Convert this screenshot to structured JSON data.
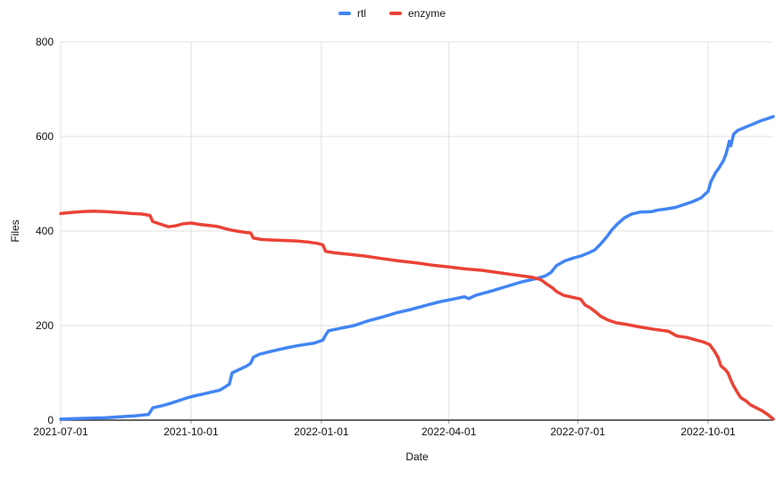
{
  "chart_data": {
    "type": "line",
    "title": "",
    "xlabel": "Date",
    "ylabel": "Files",
    "x_type": "date",
    "x_domain": [
      "2021-07-01",
      "2022-11-16"
    ],
    "ylim": [
      0,
      800
    ],
    "y_ticks": [
      0,
      200,
      400,
      600,
      800
    ],
    "x_ticks": [
      "2021-07-01",
      "2021-10-01",
      "2022-01-01",
      "2022-04-01",
      "2022-07-01",
      "2022-10-01"
    ],
    "grid": true,
    "legend_position": "top-center",
    "grid_color": "#e0e0e0",
    "axis_color": "#333333",
    "series": [
      {
        "name": "rtl",
        "color": "#4285F4",
        "points": [
          [
            "2021-07-01",
            2
          ],
          [
            "2021-07-10",
            3
          ],
          [
            "2021-07-20",
            4
          ],
          [
            "2021-08-01",
            5
          ],
          [
            "2021-08-12",
            7
          ],
          [
            "2021-08-22",
            9
          ],
          [
            "2021-09-01",
            12
          ],
          [
            "2021-09-04",
            26
          ],
          [
            "2021-09-10",
            30
          ],
          [
            "2021-09-16",
            35
          ],
          [
            "2021-09-22",
            41
          ],
          [
            "2021-09-28",
            47
          ],
          [
            "2021-10-03",
            51
          ],
          [
            "2021-10-09",
            55
          ],
          [
            "2021-10-15",
            59
          ],
          [
            "2021-10-21",
            63
          ],
          [
            "2021-10-25",
            70
          ],
          [
            "2021-10-28",
            76
          ],
          [
            "2021-10-30",
            100
          ],
          [
            "2021-11-04",
            107
          ],
          [
            "2021-11-09",
            114
          ],
          [
            "2021-11-12",
            120
          ],
          [
            "2021-11-14",
            133
          ],
          [
            "2021-11-18",
            139
          ],
          [
            "2021-11-26",
            145
          ],
          [
            "2021-12-06",
            152
          ],
          [
            "2021-12-16",
            158
          ],
          [
            "2021-12-27",
            163
          ],
          [
            "2022-01-02",
            169
          ],
          [
            "2022-01-04",
            180
          ],
          [
            "2022-01-06",
            189
          ],
          [
            "2022-01-14",
            194
          ],
          [
            "2022-01-24",
            200
          ],
          [
            "2022-02-03",
            210
          ],
          [
            "2022-02-13",
            218
          ],
          [
            "2022-02-23",
            227
          ],
          [
            "2022-03-05",
            234
          ],
          [
            "2022-03-15",
            242
          ],
          [
            "2022-03-25",
            250
          ],
          [
            "2022-04-04",
            256
          ],
          [
            "2022-04-12",
            261
          ],
          [
            "2022-04-15",
            257
          ],
          [
            "2022-04-20",
            264
          ],
          [
            "2022-05-02",
            274
          ],
          [
            "2022-05-12",
            283
          ],
          [
            "2022-05-22",
            292
          ],
          [
            "2022-06-01",
            299
          ],
          [
            "2022-06-08",
            305
          ],
          [
            "2022-06-12",
            312
          ],
          [
            "2022-06-16",
            327
          ],
          [
            "2022-06-22",
            337
          ],
          [
            "2022-06-28",
            343
          ],
          [
            "2022-07-03",
            347
          ],
          [
            "2022-07-08",
            353
          ],
          [
            "2022-07-13",
            360
          ],
          [
            "2022-07-17",
            372
          ],
          [
            "2022-07-21",
            386
          ],
          [
            "2022-07-25",
            402
          ],
          [
            "2022-07-29",
            415
          ],
          [
            "2022-08-03",
            428
          ],
          [
            "2022-08-08",
            436
          ],
          [
            "2022-08-14",
            440
          ],
          [
            "2022-08-22",
            441
          ],
          [
            "2022-08-26",
            444
          ],
          [
            "2022-09-02",
            447
          ],
          [
            "2022-09-08",
            450
          ],
          [
            "2022-09-14",
            456
          ],
          [
            "2022-09-20",
            462
          ],
          [
            "2022-09-26",
            470
          ],
          [
            "2022-10-01",
            484
          ],
          [
            "2022-10-03",
            505
          ],
          [
            "2022-10-06",
            522
          ],
          [
            "2022-10-09",
            535
          ],
          [
            "2022-10-12",
            550
          ],
          [
            "2022-10-14",
            566
          ],
          [
            "2022-10-16",
            590
          ],
          [
            "2022-10-17",
            580
          ],
          [
            "2022-10-19",
            605
          ],
          [
            "2022-10-22",
            613
          ],
          [
            "2022-10-26",
            618
          ],
          [
            "2022-10-30",
            623
          ],
          [
            "2022-11-03",
            628
          ],
          [
            "2022-11-07",
            633
          ],
          [
            "2022-11-12",
            638
          ],
          [
            "2022-11-16",
            642
          ]
        ]
      },
      {
        "name": "enzyme",
        "color": "#EA4335",
        "points": [
          [
            "2021-07-01",
            437
          ],
          [
            "2021-07-08",
            439
          ],
          [
            "2021-07-16",
            441
          ],
          [
            "2021-07-24",
            442
          ],
          [
            "2021-08-02",
            441
          ],
          [
            "2021-08-12",
            439
          ],
          [
            "2021-08-20",
            437
          ],
          [
            "2021-08-27",
            436
          ],
          [
            "2021-09-02",
            433
          ],
          [
            "2021-09-04",
            420
          ],
          [
            "2021-09-10",
            414
          ],
          [
            "2021-09-15",
            409
          ],
          [
            "2021-09-20",
            411
          ],
          [
            "2021-09-25",
            415
          ],
          [
            "2021-10-01",
            417
          ],
          [
            "2021-10-07",
            414
          ],
          [
            "2021-10-13",
            412
          ],
          [
            "2021-10-19",
            410
          ],
          [
            "2021-10-24",
            406
          ],
          [
            "2021-10-29",
            402
          ],
          [
            "2021-11-04",
            399
          ],
          [
            "2021-11-09",
            397
          ],
          [
            "2021-11-12",
            396
          ],
          [
            "2021-11-14",
            385
          ],
          [
            "2021-11-20",
            382
          ],
          [
            "2021-11-28",
            381
          ],
          [
            "2021-12-06",
            380
          ],
          [
            "2021-12-14",
            379
          ],
          [
            "2021-12-22",
            377
          ],
          [
            "2021-12-29",
            374
          ],
          [
            "2022-01-02",
            371
          ],
          [
            "2022-01-04",
            357
          ],
          [
            "2022-01-10",
            354
          ],
          [
            "2022-01-20",
            351
          ],
          [
            "2022-02-01",
            347
          ],
          [
            "2022-02-12",
            342
          ],
          [
            "2022-02-24",
            337
          ],
          [
            "2022-03-08",
            333
          ],
          [
            "2022-03-20",
            328
          ],
          [
            "2022-04-01",
            324
          ],
          [
            "2022-04-12",
            320
          ],
          [
            "2022-04-24",
            317
          ],
          [
            "2022-05-06",
            312
          ],
          [
            "2022-05-18",
            307
          ],
          [
            "2022-05-30",
            302
          ],
          [
            "2022-06-05",
            297
          ],
          [
            "2022-06-09",
            288
          ],
          [
            "2022-06-13",
            280
          ],
          [
            "2022-06-16",
            272
          ],
          [
            "2022-06-21",
            264
          ],
          [
            "2022-06-27",
            260
          ],
          [
            "2022-07-03",
            256
          ],
          [
            "2022-07-06",
            244
          ],
          [
            "2022-07-10",
            237
          ],
          [
            "2022-07-14",
            228
          ],
          [
            "2022-07-17",
            220
          ],
          [
            "2022-07-22",
            212
          ],
          [
            "2022-07-28",
            206
          ],
          [
            "2022-08-05",
            202
          ],
          [
            "2022-08-14",
            197
          ],
          [
            "2022-08-24",
            192
          ],
          [
            "2022-09-03",
            188
          ],
          [
            "2022-09-09",
            178
          ],
          [
            "2022-09-16",
            175
          ],
          [
            "2022-09-22",
            170
          ],
          [
            "2022-09-28",
            165
          ],
          [
            "2022-10-02",
            160
          ],
          [
            "2022-10-05",
            148
          ],
          [
            "2022-10-08",
            133
          ],
          [
            "2022-10-10",
            115
          ],
          [
            "2022-10-13",
            107
          ],
          [
            "2022-10-15",
            100
          ],
          [
            "2022-10-17",
            85
          ],
          [
            "2022-10-19",
            72
          ],
          [
            "2022-10-22",
            57
          ],
          [
            "2022-10-24",
            48
          ],
          [
            "2022-10-28",
            40
          ],
          [
            "2022-10-31",
            32
          ],
          [
            "2022-11-04",
            26
          ],
          [
            "2022-11-08",
            20
          ],
          [
            "2022-11-12",
            12
          ],
          [
            "2022-11-16",
            2
          ]
        ]
      }
    ]
  }
}
